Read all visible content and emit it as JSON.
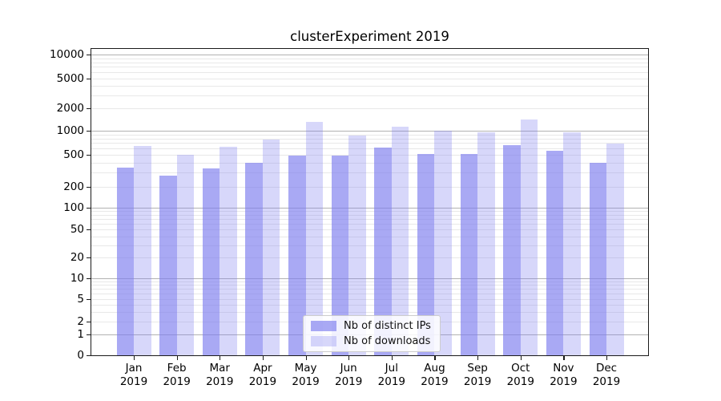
{
  "title": "clusterExperiment 2019",
  "legend": {
    "items": [
      {
        "label": "Nb of distinct IPs",
        "series": "ips"
      },
      {
        "label": "Nb of downloads",
        "series": "downloads"
      }
    ]
  },
  "colors": {
    "bar_base": "#7d7dee",
    "ips_fill": "rgba(125,125,238,0.66)",
    "downloads_fill": "rgba(125,125,238,0.31)",
    "ips_apparent_hex": "#a9a9f4",
    "downloads_apparent_hex": "#d7d7fa",
    "grid_major": "#b2b2b2",
    "grid_minor": "#e8e8e8",
    "frame": "#1a1a1a"
  },
  "chart_data": {
    "type": "bar",
    "title": "clusterExperiment 2019",
    "categories": [
      "Jan 2019",
      "Feb 2019",
      "Mar 2019",
      "Apr 2019",
      "May 2019",
      "Jun 2019",
      "Jul 2019",
      "Aug 2019",
      "Sep 2019",
      "Oct 2019",
      "Nov 2019",
      "Dec 2019"
    ],
    "series": [
      {
        "name": "Nb of distinct IPs",
        "values": [
          345,
          275,
          340,
          400,
          490,
          485,
          615,
          510,
          510,
          660,
          560,
          400
        ]
      },
      {
        "name": "Nb of downloads",
        "values": [
          645,
          505,
          630,
          775,
          1310,
          870,
          1130,
          1010,
          955,
          1415,
          950,
          685
        ]
      }
    ],
    "yscale": "symlog",
    "yticks": [
      0,
      1,
      2,
      5,
      10,
      20,
      50,
      100,
      200,
      500,
      1000,
      2000,
      5000,
      10000
    ],
    "ylim": [
      0,
      13000
    ],
    "grid": true,
    "legend_position": "lower center",
    "xlabel": "",
    "ylabel": ""
  }
}
